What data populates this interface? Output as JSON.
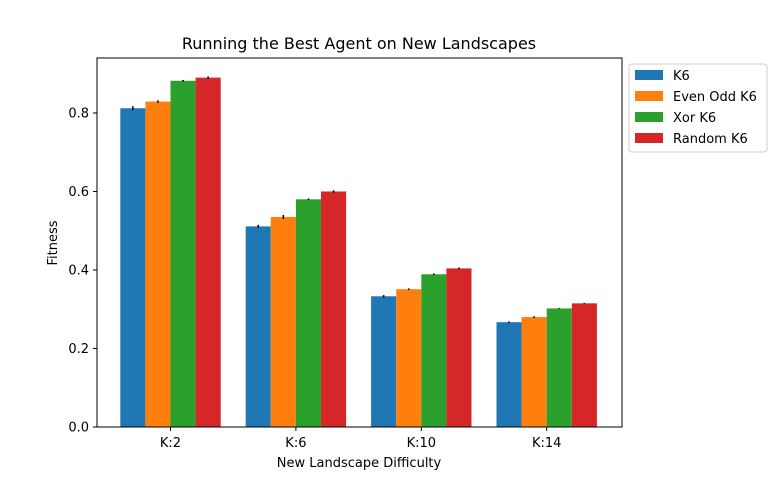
{
  "chart_data": {
    "type": "bar",
    "title": "Running the Best Agent on New Landscapes",
    "xlabel": "New Landscape Difficulty",
    "ylabel": "Fitness",
    "categories": [
      "K:2",
      "K:6",
      "K:10",
      "K:14"
    ],
    "ylim": [
      0,
      0.94
    ],
    "yticks": [
      "0.0",
      "0.2",
      "0.4",
      "0.6",
      "0.8"
    ],
    "legend_position": "outside-top-right",
    "grid": false,
    "error_bars": true,
    "series": [
      {
        "name": "K6",
        "color": "#1f77b4",
        "values": [
          0.812,
          0.511,
          0.333,
          0.267
        ],
        "errors": [
          0.005,
          0.004,
          0.003,
          0.002
        ]
      },
      {
        "name": "Even Odd K6",
        "color": "#ff7f0e",
        "values": [
          0.829,
          0.535,
          0.351,
          0.28
        ],
        "errors": [
          0.003,
          0.005,
          0.002,
          0.002
        ]
      },
      {
        "name": "Xor K6",
        "color": "#2ca02c",
        "values": [
          0.882,
          0.58,
          0.389,
          0.302
        ],
        "errors": [
          0.002,
          0.002,
          0.002,
          0.001
        ]
      },
      {
        "name": "Random K6",
        "color": "#d62728",
        "values": [
          0.89,
          0.6,
          0.404,
          0.315
        ],
        "errors": [
          0.003,
          0.003,
          0.002,
          0.001
        ]
      }
    ]
  }
}
